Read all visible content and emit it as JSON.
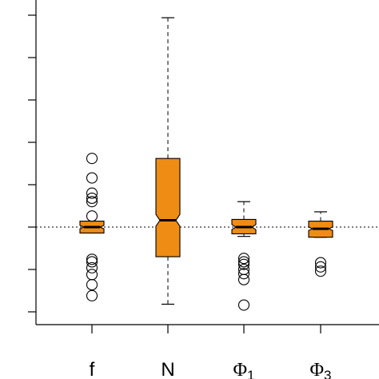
{
  "chart_data": {
    "type": "boxplot",
    "title": "",
    "xlabel": "",
    "ylabel": "",
    "ylim": [
      -0.1,
      0.26
    ],
    "y_tick_values": [
      -0.1,
      -0.05,
      0.0,
      0.05,
      0.1,
      0.15,
      0.2,
      0.25
    ],
    "y_tick_labels_visible": false,
    "reference_line": {
      "y": 0.0,
      "style": "dotted"
    },
    "notched": true,
    "box_color": "#ef8c14",
    "categories": [
      {
        "label": "f",
        "sub": ""
      },
      {
        "label": "N",
        "sub": ""
      },
      {
        "label": "Φ",
        "sub": "1"
      },
      {
        "label": "Φ",
        "sub": "3"
      }
    ],
    "boxes": [
      {
        "name": "f",
        "whisker_low": -0.007,
        "q1": -0.007,
        "median": 0.0,
        "q3": 0.007,
        "whisker_high": 0.007,
        "notch_half": 0.002,
        "outliers": [
          0.081,
          0.058,
          0.04,
          0.034,
          0.03,
          0.013,
          -0.038,
          -0.041,
          -0.048,
          -0.056,
          -0.068,
          -0.081
        ]
      },
      {
        "name": "N",
        "whisker_low": -0.091,
        "q1": -0.035,
        "median": 0.008,
        "q3": 0.081,
        "whisker_high": 0.247,
        "notch_half": 0.007,
        "outliers": []
      },
      {
        "name": "Φ1",
        "whisker_low": -0.011,
        "q1": -0.008,
        "median": 0.0,
        "q3": 0.009,
        "whisker_high": 0.03,
        "notch_half": 0.003,
        "outliers": [
          -0.037,
          -0.041,
          -0.044,
          -0.05,
          -0.055,
          -0.062,
          -0.092
        ]
      },
      {
        "name": "Φ3",
        "whisker_low": -0.012,
        "q1": -0.012,
        "median": -0.002,
        "q3": 0.007,
        "whisker_high": 0.018,
        "notch_half": 0.002,
        "outliers": [
          -0.042,
          -0.047,
          -0.052
        ]
      }
    ]
  }
}
